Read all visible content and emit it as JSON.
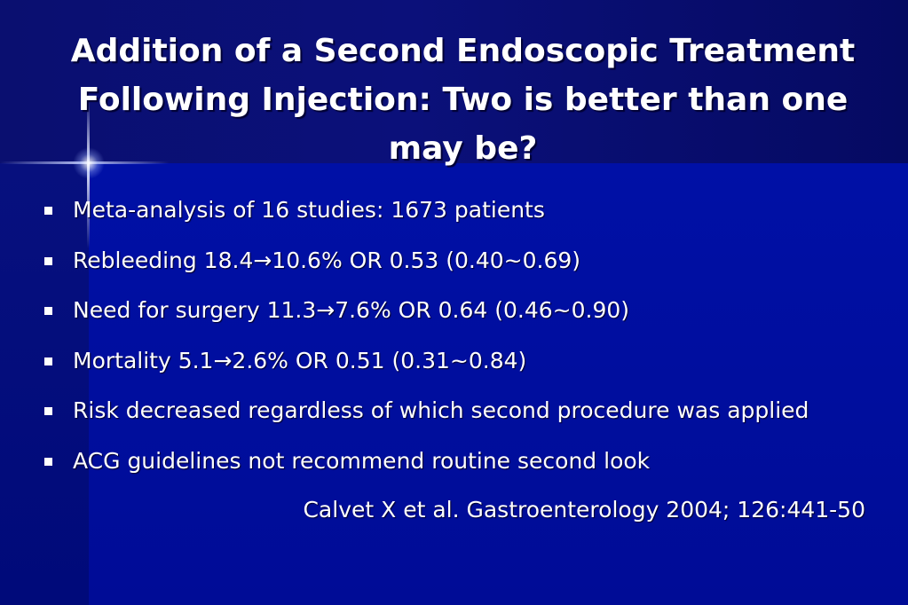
{
  "slide": {
    "title": "Addition of a Second Endoscopic Treatment Following Injection: Two is better than one may be?",
    "bullets": [
      {
        "text": "Meta-analysis of 16 studies: 1673 patients"
      },
      {
        "text": "Rebleeding 18.4→10.6% OR 0.53 (0.40~0.69)"
      },
      {
        "text": "Need for surgery 11.3→7.6% OR 0.64 (0.46~0.90)"
      },
      {
        "text": "Mortality 5.1→2.6% OR 0.51 (0.31~0.84)"
      },
      {
        "text": "Risk decreased regardless of which second procedure was applied"
      },
      {
        "text": "ACG guidelines not recommend routine second look"
      }
    ],
    "citation": "Calvet X et al. Gastroenterology 2004; 126:441-50"
  },
  "colors": {
    "background": "#00008f",
    "title_band": "#0a0f70",
    "text": "#ffffff"
  }
}
